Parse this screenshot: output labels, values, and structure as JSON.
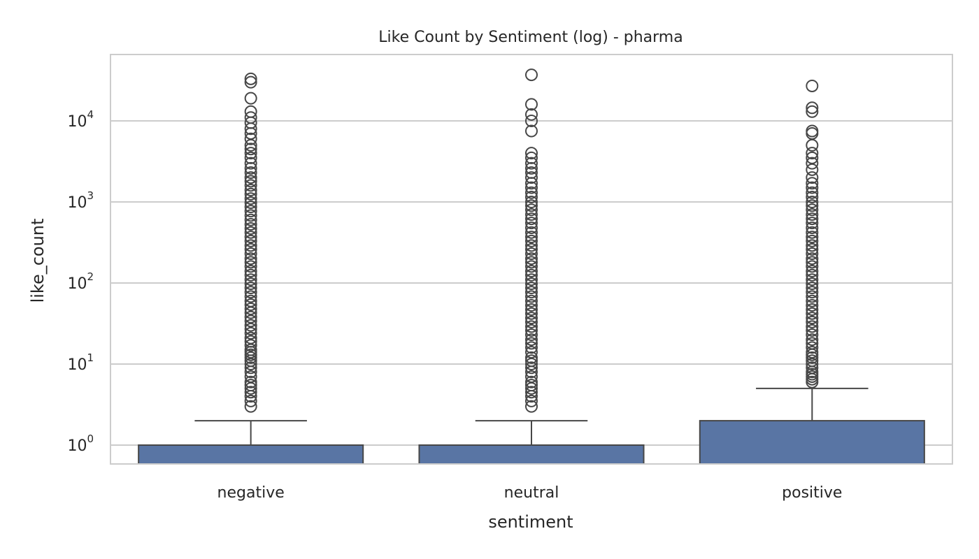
{
  "chart_data": {
    "type": "box",
    "title": "Like Count by Sentiment (log) - pharma",
    "xlabel": "sentiment",
    "ylabel": "like_count",
    "yscale": "log",
    "ylim": [
      0.6,
      60000
    ],
    "yticks": [
      {
        "value": 1,
        "base": "10",
        "exp": "0"
      },
      {
        "value": 10,
        "base": "10",
        "exp": "1"
      },
      {
        "value": 100,
        "base": "10",
        "exp": "2"
      },
      {
        "value": 1000,
        "base": "10",
        "exp": "3"
      },
      {
        "value": 10000,
        "base": "10",
        "exp": "4"
      }
    ],
    "grid": true,
    "categories": [
      "negative",
      "neutral",
      "positive"
    ],
    "boxes": [
      {
        "category": "negative",
        "q1": 0,
        "median": 0,
        "q3": 1,
        "whisker_low": 0,
        "whisker_high": 2,
        "outliers": [
          3,
          3.5,
          4,
          4.5,
          5,
          5.5,
          6,
          7,
          8,
          9,
          10,
          11,
          12,
          13,
          14,
          15,
          17,
          19,
          21,
          24,
          27,
          30,
          34,
          38,
          43,
          48,
          54,
          60,
          68,
          77,
          87,
          98,
          110,
          125,
          140,
          160,
          180,
          200,
          230,
          260,
          290,
          330,
          370,
          420,
          470,
          530,
          600,
          680,
          770,
          870,
          980,
          1100,
          1250,
          1400,
          1600,
          1800,
          2000,
          2300,
          2600,
          3000,
          3500,
          4000,
          4500,
          5000,
          6000,
          7000,
          8000,
          9500,
          11000,
          13000,
          19000,
          30000,
          33000
        ]
      },
      {
        "category": "neutral",
        "q1": 0,
        "median": 0,
        "q3": 1,
        "whisker_low": 0,
        "whisker_high": 2,
        "outliers": [
          3,
          3.5,
          4,
          4.5,
          5,
          5.5,
          6,
          7,
          8,
          9,
          10,
          11,
          12,
          14,
          16,
          18,
          20,
          23,
          26,
          29,
          33,
          37,
          42,
          47,
          53,
          60,
          68,
          77,
          87,
          98,
          110,
          125,
          140,
          160,
          180,
          200,
          230,
          260,
          290,
          330,
          370,
          420,
          480,
          550,
          620,
          700,
          800,
          900,
          1000,
          1150,
          1300,
          1500,
          1700,
          2000,
          2300,
          2600,
          3000,
          3500,
          4000,
          7500,
          10000,
          12000,
          16000,
          37000
        ]
      },
      {
        "category": "positive",
        "q1": 0,
        "median": 0,
        "q3": 2,
        "whisker_low": 0,
        "whisker_high": 5,
        "outliers": [
          6,
          6.5,
          7,
          7.5,
          8,
          9,
          10,
          11,
          12,
          13,
          14,
          16,
          18,
          20,
          23,
          26,
          29,
          33,
          37,
          42,
          47,
          53,
          60,
          68,
          77,
          87,
          98,
          110,
          125,
          140,
          160,
          180,
          200,
          230,
          260,
          290,
          330,
          370,
          420,
          480,
          550,
          620,
          700,
          800,
          900,
          1000,
          1150,
          1300,
          1500,
          1700,
          2000,
          2500,
          3000,
          3500,
          4000,
          5000,
          7000,
          7500,
          13000,
          14500,
          27000
        ]
      }
    ],
    "colors": {
      "box_fill": "#5975a4",
      "line": "#474747",
      "grid": "#cccccc",
      "axes_edge": "#cccccc",
      "text": "#262626",
      "background": "#ffffff"
    }
  }
}
